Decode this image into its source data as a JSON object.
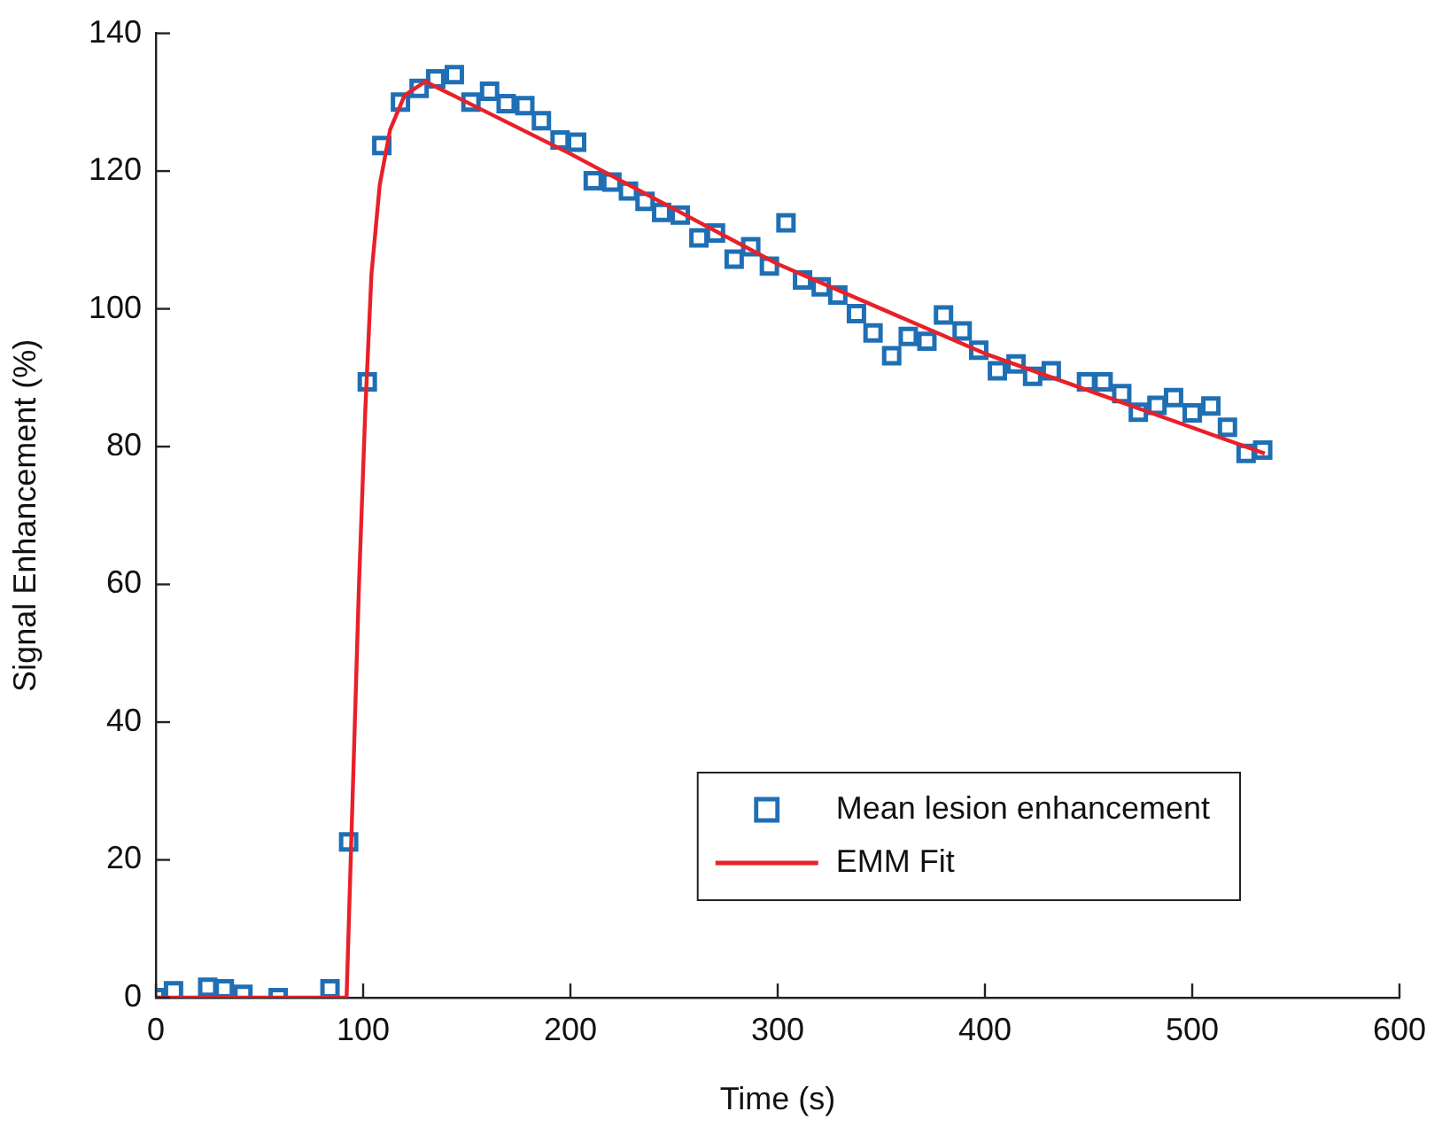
{
  "chart_data": {
    "type": "scatter",
    "xlabel": "Time (s)",
    "ylabel": "Signal Enhancement (%)",
    "xlim": [
      0,
      600
    ],
    "xticks": [
      0,
      100,
      200,
      300,
      400,
      500,
      600
    ],
    "ylim": [
      0,
      140
    ],
    "yticks": [
      0,
      20,
      40,
      60,
      80,
      100,
      120,
      140
    ],
    "grid": false,
    "legend": "bottom right",
    "series": [
      {
        "name": "Mean lesion enhancement",
        "marker": "square",
        "color": "#1f6fb4",
        "x": [
          0,
          8.5,
          25,
          33,
          42,
          59,
          84,
          93,
          102,
          109,
          118,
          127,
          135,
          144,
          152,
          161,
          169,
          178,
          186,
          195,
          203,
          211,
          220,
          228,
          236,
          244,
          253,
          262,
          270,
          279,
          287,
          296,
          304,
          312,
          321,
          329,
          338,
          346,
          355,
          363,
          372,
          380,
          389,
          397,
          406,
          415,
          423,
          432,
          449,
          457,
          466,
          474,
          483,
          491,
          500,
          509,
          517,
          526,
          534
        ],
        "values": [
          0,
          1,
          1.5,
          1.3,
          0.5,
          0,
          1.3,
          22.6,
          89.4,
          123.7,
          130,
          132,
          133.4,
          134,
          130,
          131.6,
          129.8,
          129.5,
          127.3,
          124.5,
          124.2,
          118.6,
          118.4,
          117.1,
          115.6,
          114,
          113.6,
          110.3,
          111,
          107.2,
          109,
          106.2,
          112.5,
          104.2,
          103.2,
          102,
          99.3,
          96.5,
          93.2,
          96,
          95.3,
          99.1,
          96.8,
          94,
          91,
          92,
          90.2,
          91,
          89.4,
          89.4,
          87.7,
          85,
          86,
          87.1,
          84.9,
          85.9,
          82.8,
          79,
          79.5
        ]
      },
      {
        "name": "EMM Fit",
        "type": "line",
        "marker": "none",
        "line_style": "solid",
        "color": "#e8202a",
        "x": [
          0,
          92,
          95,
          98,
          101,
          104,
          108,
          113,
          120,
          130,
          140,
          200,
          300,
          400,
          535
        ],
        "values": [
          0,
          0,
          30,
          60,
          85,
          105,
          118,
          126,
          131,
          133,
          131.5,
          122.5,
          106.5,
          93.5,
          79
        ]
      }
    ]
  }
}
